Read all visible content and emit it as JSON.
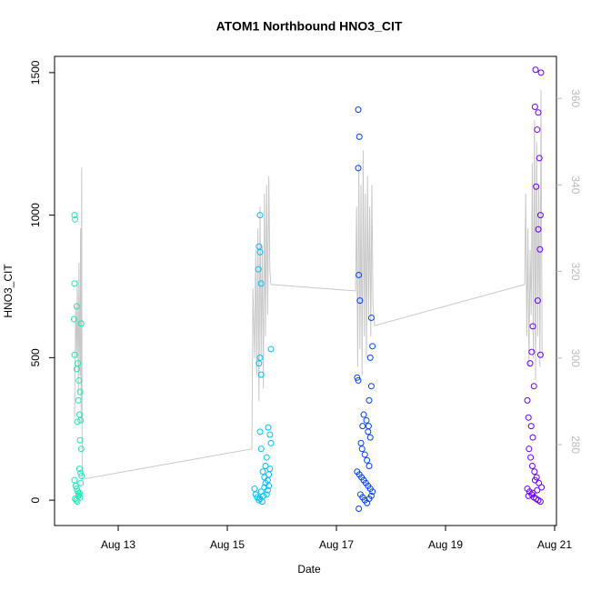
{
  "chart_data": {
    "type": "scatter",
    "title": "ATOM1 Northbound HNO3_CIT",
    "x_label": "Date",
    "y_label": "HNO3_CIT",
    "xlim": [
      11.833,
      21.033
    ],
    "xticks": [
      {
        "value": 13,
        "label": "Aug 13"
      },
      {
        "value": 15,
        "label": "Aug 15"
      },
      {
        "value": 17,
        "label": "Aug 17"
      },
      {
        "value": 19,
        "label": "Aug 19"
      },
      {
        "value": 21,
        "label": "Aug 21"
      }
    ],
    "ylim": [
      -89,
      1557
    ],
    "yticks": [
      0,
      500,
      1000,
      1500
    ],
    "y2lim": [
      261.3,
      369.7
    ],
    "y2ticks": [
      280,
      300,
      320,
      340,
      360
    ],
    "series": [
      {
        "color": "#1de9b6",
        "x": [
          12.2,
          12.21,
          12.2,
          12.19,
          12.2,
          12.26,
          12.24,
          12.28,
          12.3,
          12.27,
          12.29,
          12.31,
          12.25,
          12.3,
          12.32,
          12.29,
          12.31,
          12.2,
          12.22,
          12.24,
          12.26,
          12.28,
          12.3,
          12.21,
          12.23,
          12.25,
          12.27,
          12.29,
          12.31,
          12.33,
          12.24,
          12.32
        ],
        "values": [
          1000,
          985,
          760,
          635,
          510,
          480,
          460,
          420,
          380,
          350,
          300,
          280,
          275,
          210,
          180,
          110,
          95,
          70,
          50,
          40,
          30,
          20,
          10,
          5,
          0,
          -5,
          15,
          25,
          60,
          85,
          680,
          620
        ]
      },
      {
        "color": "#00bfff",
        "x": [
          15.6,
          15.58,
          15.6,
          15.57,
          15.62,
          15.6,
          15.58,
          15.62,
          15.8,
          15.6,
          15.62,
          15.75,
          15.78,
          15.8,
          15.72,
          15.7,
          15.65,
          15.68,
          15.74,
          15.76,
          15.5,
          15.52,
          15.55,
          15.58,
          15.6,
          15.62,
          15.64,
          15.66,
          15.68,
          15.7,
          15.72,
          15.74,
          15.76,
          15.78
        ],
        "values": [
          1000,
          890,
          870,
          810,
          760,
          500,
          480,
          440,
          530,
          240,
          180,
          255,
          230,
          200,
          150,
          120,
          100,
          80,
          70,
          50,
          40,
          20,
          10,
          0,
          5,
          30,
          -5,
          15,
          45,
          60,
          20,
          35,
          90,
          110
        ]
      },
      {
        "color": "#0040ff",
        "x": [
          17.4,
          17.42,
          17.4,
          17.41,
          17.43,
          17.38,
          17.4,
          17.64,
          17.66,
          17.62,
          17.6,
          17.64,
          17.5,
          17.55,
          17.48,
          17.58,
          17.62,
          17.45,
          17.47,
          17.52,
          17.56,
          17.6,
          17.38,
          17.42,
          17.46,
          17.5,
          17.54,
          17.58,
          17.62,
          17.66,
          17.44,
          17.48,
          17.52,
          17.56,
          17.6,
          17.64,
          17.41,
          17.59
        ],
        "values": [
          1370,
          1275,
          1165,
          790,
          700,
          430,
          420,
          640,
          540,
          500,
          350,
          400,
          300,
          280,
          260,
          240,
          220,
          200,
          180,
          160,
          140,
          120,
          100,
          90,
          80,
          70,
          60,
          50,
          40,
          30,
          20,
          10,
          0,
          -10,
          5,
          15,
          -30,
          260
        ]
      },
      {
        "color": "#6a00ff",
        "x": [
          20.65,
          20.75,
          20.64,
          20.7,
          20.68,
          20.72,
          20.66,
          20.74,
          20.7,
          20.73,
          20.6,
          20.58,
          20.55,
          20.62,
          20.5,
          20.52,
          20.57,
          20.6,
          20.74,
          20.53,
          20.56,
          20.59,
          20.63,
          20.67,
          20.71,
          20.5,
          20.54,
          20.58,
          20.62,
          20.66,
          20.7,
          20.74,
          20.52,
          20.6,
          20.68,
          20.76,
          20.64,
          20.69
        ],
        "values": [
          1510,
          1500,
          1380,
          1360,
          1300,
          1200,
          1100,
          1000,
          950,
          880,
          610,
          520,
          480,
          400,
          350,
          290,
          260,
          220,
          510,
          180,
          150,
          120,
          100,
          80,
          60,
          40,
          30,
          20,
          10,
          5,
          0,
          -5,
          15,
          25,
          35,
          45,
          70,
          700
        ]
      },
      {
        "type": "line",
        "axis": "y2",
        "color": "#c8c8c8",
        "x": [
          12.2,
          12.22,
          12.24,
          12.25,
          12.27,
          12.28,
          12.29,
          12.3,
          12.31,
          12.32,
          12.33,
          12.34,
          15.45,
          15.47,
          15.5,
          15.52,
          15.54,
          15.56,
          15.58,
          15.6,
          15.62,
          15.64,
          15.66,
          15.68,
          15.7,
          15.72,
          15.74,
          15.76,
          15.78,
          15.8,
          17.35,
          17.37,
          17.39,
          17.41,
          17.43,
          17.45,
          17.47,
          17.49,
          17.51,
          17.53,
          17.55,
          17.57,
          17.59,
          17.61,
          17.63,
          17.65,
          17.67,
          17.7,
          20.45,
          20.47,
          20.49,
          20.51,
          20.53,
          20.55,
          20.57,
          20.59,
          20.61,
          20.63,
          20.65,
          20.67,
          20.69,
          20.71,
          20.73,
          20.75,
          20.77
        ],
        "values": [
          286,
          312,
          300,
          318,
          292,
          322,
          305,
          296,
          330,
          285,
          344,
          272,
          279,
          316,
          300,
          325,
          296,
          330,
          290,
          335,
          300,
          326,
          293,
          338,
          305,
          340,
          310,
          342,
          320,
          317,
          315.5,
          335,
          298,
          345,
          302,
          340,
          296,
          348,
          305,
          338,
          300,
          342,
          310,
          335,
          305,
          340,
          312,
          307.5,
          317,
          338,
          305,
          330,
          298,
          325,
          310,
          345,
          300,
          355,
          295,
          350,
          305,
          340,
          298,
          362,
          300
        ]
      }
    ]
  }
}
